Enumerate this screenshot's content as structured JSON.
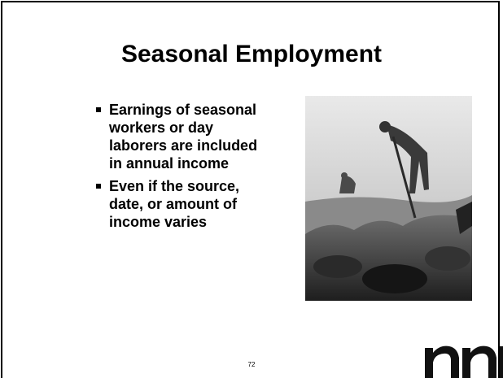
{
  "slide": {
    "title": "Seasonal Employment",
    "bullets": [
      "Earnings of seasonal workers or day laborers are included in annual income",
      "Even if the source, date, or amount of income varies"
    ],
    "page_number": "72"
  }
}
